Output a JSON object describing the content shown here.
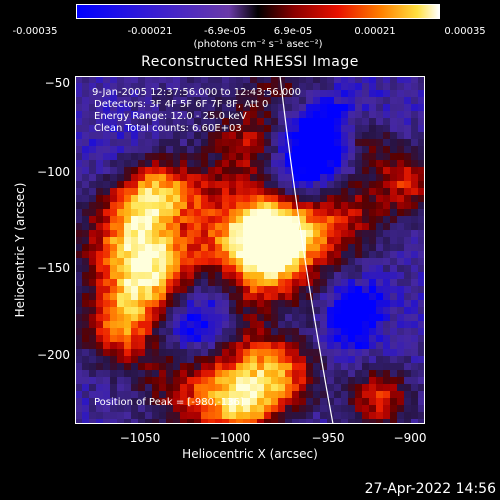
{
  "colorbar": {
    "ticks": [
      "-0.00035",
      "-0.00021",
      "-6.9e-05",
      "6.9e-05",
      "0.00021",
      "0.00035"
    ],
    "units": "(photons cm⁻² s⁻¹ asec⁻²)"
  },
  "title": "Reconstructed RHESSI Image",
  "info": {
    "time_range": "9-Jan-2005 12:37:56.000 to 12:43:56.000",
    "detectors": "Detectors: 3F 4F 5F 6F 7F 8F, Att 0",
    "energy": "Energy Range: 12.0 - 25.0 keV",
    "clean": "Clean    Total counts: 6.60E+03",
    "peak": "Position of Peak = [-980,-136]"
  },
  "axes": {
    "xlabel": "Heliocentric X (arcsec)",
    "ylabel": "Heliocentric Y (arcsec)",
    "xticks": [
      "−1050",
      "−1000",
      "−950",
      "−900"
    ],
    "yticks": [
      "−50",
      "−100",
      "−150",
      "−200"
    ],
    "xlim": [
      -1090,
      -890
    ],
    "ylim": [
      -239,
      -41
    ]
  },
  "timestamp": "27-Apr-2022 14:56"
}
